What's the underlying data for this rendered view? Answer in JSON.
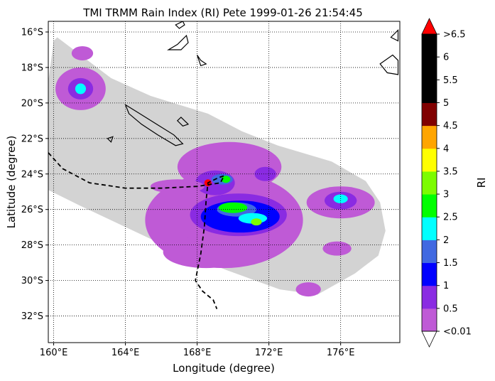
{
  "chart_data": {
    "type": "heatmap",
    "title": "TMI TRMM Rain Index (RI) Pete 1999-01-26 21:54:45",
    "xlabel": "Longitude (degree)",
    "ylabel": "Latitude (degree)",
    "xlim": [
      159.7,
      179.3
    ],
    "ylim": [
      -33.5,
      -15.4
    ],
    "grid": true,
    "x_ticks": [
      {
        "value": 160,
        "label": "160°E"
      },
      {
        "value": 164,
        "label": "164°E"
      },
      {
        "value": 168,
        "label": "168°E"
      },
      {
        "value": 172,
        "label": "172°E"
      },
      {
        "value": 176,
        "label": "176°E"
      }
    ],
    "y_ticks": [
      {
        "value": -16,
        "label": "16°S"
      },
      {
        "value": -18,
        "label": "18°S"
      },
      {
        "value": -20,
        "label": "20°S"
      },
      {
        "value": -22,
        "label": "22°S"
      },
      {
        "value": -24,
        "label": "24°S"
      },
      {
        "value": -26,
        "label": "26°S"
      },
      {
        "value": -28,
        "label": "28°S"
      },
      {
        "value": -30,
        "label": "30°S"
      },
      {
        "value": -32,
        "label": "32°S"
      }
    ],
    "swath": [
      [
        160.2,
        -16.3
      ],
      [
        163.2,
        -18.6
      ],
      [
        165.4,
        -19.6
      ],
      [
        168.6,
        -20.6
      ],
      [
        170.5,
        -21.6
      ],
      [
        172.5,
        -22.4
      ],
      [
        175.5,
        -23.3
      ],
      [
        177.4,
        -24.4
      ],
      [
        178.2,
        -25.6
      ],
      [
        178.5,
        -27.2
      ],
      [
        178.1,
        -28.6
      ],
      [
        176.8,
        -29.6
      ],
      [
        174.7,
        -30.8
      ],
      [
        172.6,
        -30.5
      ],
      [
        169.6,
        -29.4
      ],
      [
        165.5,
        -27.7
      ],
      [
        161.5,
        -25.8
      ],
      [
        159.7,
        -24.9
      ],
      [
        159.7,
        -18.8
      ],
      [
        160.0,
        -16.5
      ]
    ],
    "rain_cells": [
      {
        "lon": 161.5,
        "lat": -19.2,
        "rx": 1.4,
        "ry": 1.2,
        "ri": 0.3
      },
      {
        "lon": 161.5,
        "lat": -19.2,
        "rx": 0.7,
        "ry": 0.6,
        "ri": 0.8
      },
      {
        "lon": 161.5,
        "lat": -19.2,
        "rx": 0.3,
        "ry": 0.3,
        "ri": 2.2
      },
      {
        "lon": 161.6,
        "lat": -17.2,
        "rx": 0.6,
        "ry": 0.4,
        "ri": 0.3
      },
      {
        "lon": 169.5,
        "lat": -26.6,
        "rx": 4.4,
        "ry": 2.7,
        "ri": 0.3
      },
      {
        "lon": 169.8,
        "lat": -23.6,
        "rx": 2.9,
        "ry": 1.4,
        "ri": 0.3
      },
      {
        "lon": 168.5,
        "lat": -28.4,
        "rx": 2.4,
        "ry": 0.9,
        "ri": 0.3
      },
      {
        "lon": 170.3,
        "lat": -26.3,
        "rx": 2.7,
        "ry": 1.2,
        "ri": 0.8
      },
      {
        "lon": 170.4,
        "lat": -26.4,
        "rx": 2.2,
        "ry": 0.9,
        "ri": 1.2
      },
      {
        "lon": 170.2,
        "lat": -26.0,
        "rx": 1.1,
        "ry": 0.4,
        "ri": 1.7
      },
      {
        "lon": 170.0,
        "lat": -25.9,
        "rx": 0.8,
        "ry": 0.3,
        "ri": 2.7
      },
      {
        "lon": 171.1,
        "lat": -26.5,
        "rx": 0.8,
        "ry": 0.3,
        "ri": 2.2
      },
      {
        "lon": 171.3,
        "lat": -26.7,
        "rx": 0.3,
        "ry": 0.2,
        "ri": 3.2
      },
      {
        "lon": 169.0,
        "lat": -24.5,
        "rx": 1.1,
        "ry": 0.7,
        "ri": 0.8
      },
      {
        "lon": 169.4,
        "lat": -24.3,
        "rx": 0.6,
        "ry": 0.3,
        "ri": 1.7
      },
      {
        "lon": 169.6,
        "lat": -24.3,
        "rx": 0.25,
        "ry": 0.2,
        "ri": 2.7
      },
      {
        "lon": 168.6,
        "lat": -24.5,
        "rx": 0.2,
        "ry": 0.2,
        "ri": 7.0
      },
      {
        "lon": 171.8,
        "lat": -24.0,
        "rx": 0.6,
        "ry": 0.4,
        "ri": 0.8
      },
      {
        "lon": 176.0,
        "lat": -25.6,
        "rx": 1.9,
        "ry": 0.9,
        "ri": 0.3
      },
      {
        "lon": 176.0,
        "lat": -25.5,
        "rx": 0.9,
        "ry": 0.5,
        "ri": 0.8
      },
      {
        "lon": 176.0,
        "lat": -25.4,
        "rx": 0.4,
        "ry": 0.25,
        "ri": 2.2
      },
      {
        "lon": 174.2,
        "lat": -30.5,
        "rx": 0.7,
        "ry": 0.4,
        "ri": 0.3
      },
      {
        "lon": 175.8,
        "lat": -28.2,
        "rx": 0.8,
        "ry": 0.4,
        "ri": 0.3
      },
      {
        "lon": 166.9,
        "lat": -24.7,
        "rx": 1.5,
        "ry": 0.4,
        "ri": 0.3
      }
    ],
    "storm_track": [
      [
        159.7,
        -22.8
      ],
      [
        160.5,
        -23.7
      ],
      [
        162.0,
        -24.5
      ],
      [
        164.0,
        -24.8
      ],
      [
        166.0,
        -24.8
      ],
      [
        168.0,
        -24.7
      ],
      [
        169.3,
        -24.5
      ],
      [
        169.5,
        -24.1
      ],
      [
        169.2,
        -24.2
      ],
      [
        168.6,
        -24.5
      ],
      [
        168.5,
        -25.5
      ],
      [
        168.4,
        -27.0
      ],
      [
        168.2,
        -28.5
      ],
      [
        167.9,
        -30.0
      ],
      [
        168.3,
        -30.6
      ],
      [
        168.9,
        -31.1
      ],
      [
        169.1,
        -31.6
      ]
    ],
    "land": [
      [
        [
          164.0,
          -20.1
        ],
        [
          164.8,
          -20.6
        ],
        [
          165.9,
          -21.3
        ],
        [
          166.7,
          -21.8
        ],
        [
          167.2,
          -22.3
        ],
        [
          166.8,
          -22.4
        ],
        [
          165.8,
          -21.8
        ],
        [
          164.9,
          -21.2
        ],
        [
          164.2,
          -20.6
        ],
        [
          164.0,
          -20.1
        ]
      ],
      [
        [
          166.9,
          -21.0
        ],
        [
          167.1,
          -20.8
        ],
        [
          167.5,
          -21.2
        ],
        [
          167.2,
          -21.3
        ],
        [
          166.9,
          -21.0
        ]
      ],
      [
        [
          163.0,
          -22.0
        ],
        [
          163.3,
          -21.9
        ],
        [
          163.2,
          -22.2
        ],
        [
          163.0,
          -22.0
        ]
      ],
      [
        [
          166.4,
          -17.0
        ],
        [
          166.9,
          -16.7
        ],
        [
          167.4,
          -16.2
        ],
        [
          167.5,
          -16.6
        ],
        [
          167.1,
          -17.0
        ],
        [
          166.4,
          -17.0
        ]
      ],
      [
        [
          168.0,
          -17.3
        ],
        [
          168.2,
          -17.6
        ],
        [
          168.5,
          -17.8
        ],
        [
          168.2,
          -17.9
        ],
        [
          168.0,
          -17.3
        ]
      ],
      [
        [
          166.8,
          -15.6
        ],
        [
          167.2,
          -15.4
        ],
        [
          167.3,
          -15.6
        ],
        [
          167.0,
          -15.8
        ],
        [
          166.8,
          -15.6
        ]
      ],
      [
        [
          178.2,
          -17.8
        ],
        [
          178.9,
          -17.3
        ],
        [
          179.2,
          -17.6
        ],
        [
          179.2,
          -18.4
        ],
        [
          178.6,
          -18.3
        ],
        [
          178.2,
          -17.8
        ]
      ],
      [
        [
          178.8,
          -16.3
        ],
        [
          179.2,
          -15.9
        ],
        [
          179.2,
          -16.5
        ],
        [
          178.8,
          -16.3
        ]
      ]
    ],
    "colorbar": {
      "label": "RI",
      "ticks": [
        "<0.01",
        "0.5",
        "1",
        "1.5",
        "2",
        "2.5",
        "3",
        "3.5",
        "4",
        "4.5",
        "5",
        "5.5",
        "6",
        ">6.5"
      ],
      "colors": [
        "#bf5ad6",
        "#8a2be2",
        "#0000ff",
        "#4169e1",
        "#00ffff",
        "#00ff00",
        "#7cfc00",
        "#ffff00",
        "#ffa500",
        "#800000",
        "#000000",
        "#000000",
        "#000000"
      ],
      "under_color": "#ffffff",
      "over_color": "#ff0000",
      "no_rain_color": "#d3d3d3"
    }
  }
}
